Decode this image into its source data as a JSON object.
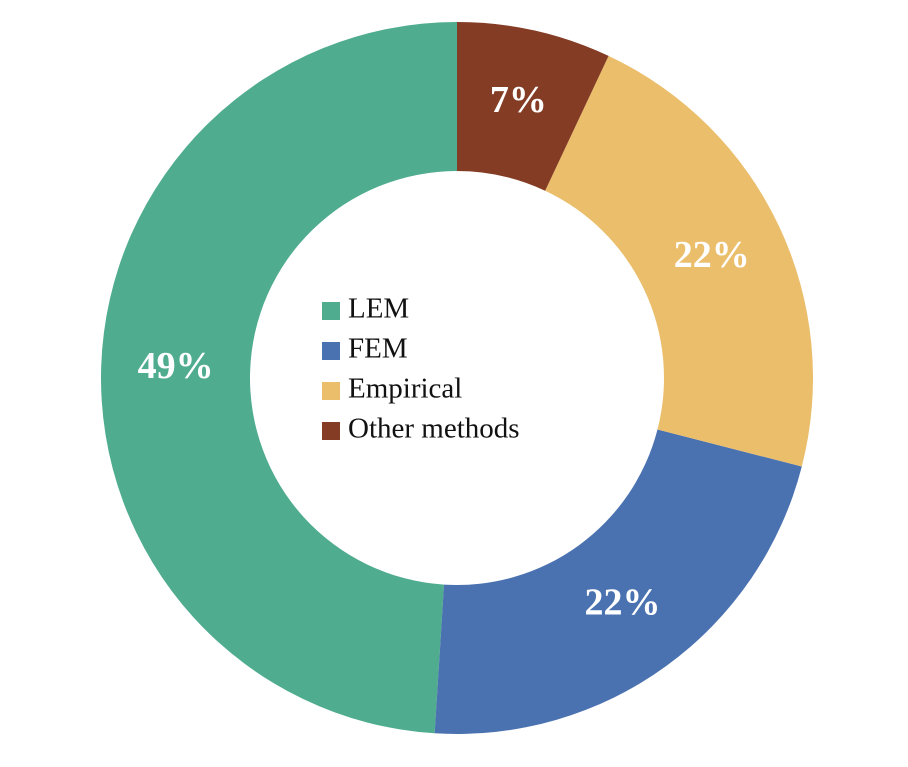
{
  "chart_data": {
    "type": "donut",
    "categories": [
      "LEM",
      "FEM",
      "Empirical",
      "Other methods"
    ],
    "values": [
      49,
      22,
      22,
      7
    ],
    "value_labels": [
      "49%",
      "22%",
      "22%",
      "7%"
    ],
    "colors": [
      "#4fac8f",
      "#4a72b0",
      "#ebbe6c",
      "#843c24"
    ]
  }
}
